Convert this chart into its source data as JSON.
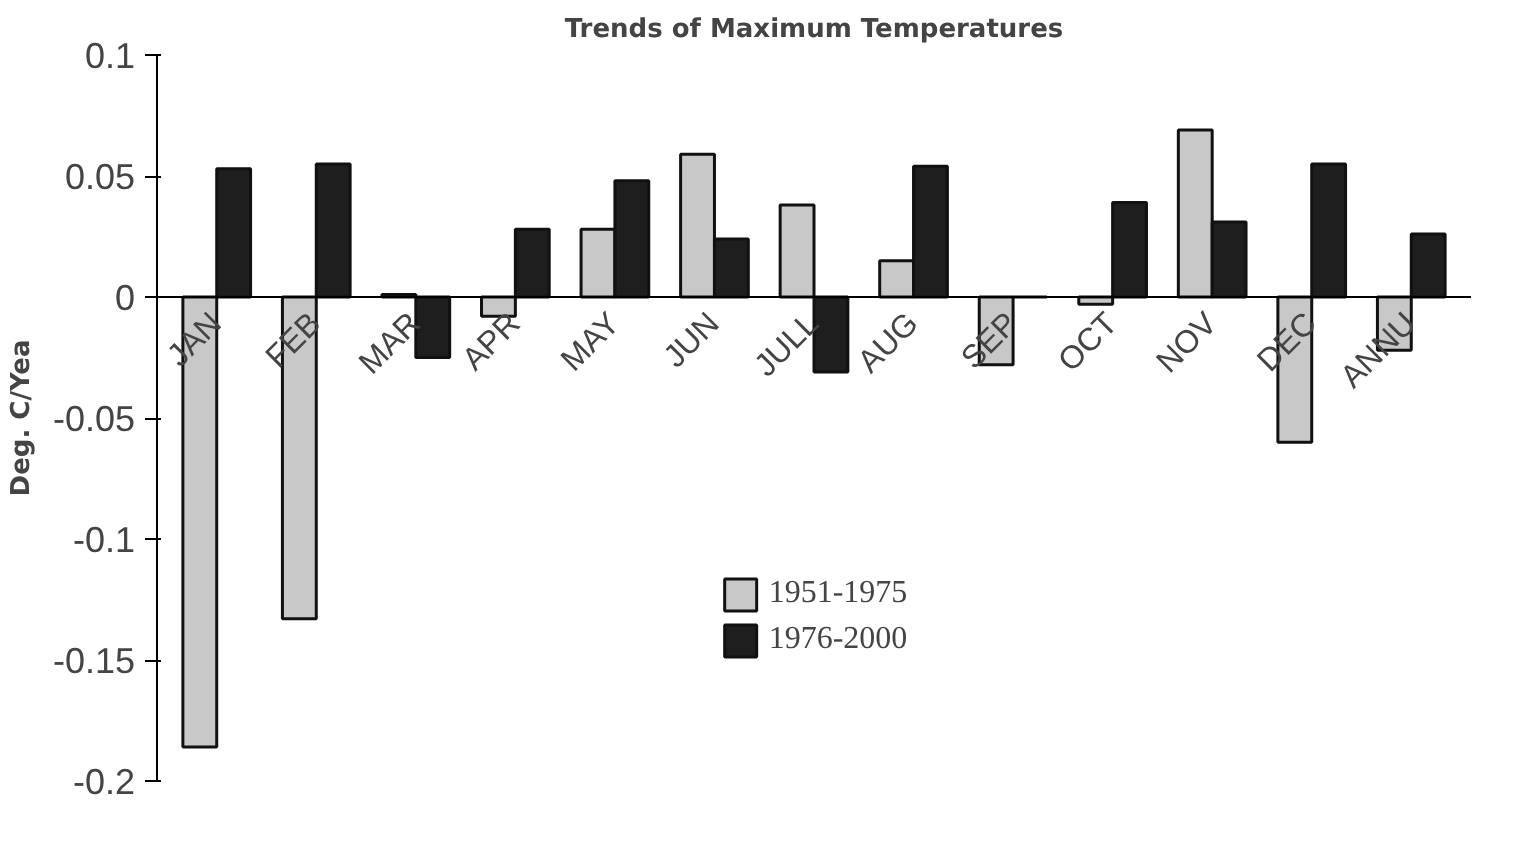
{
  "chart_data": {
    "type": "bar",
    "title": "Trends of Maximum Temperatures",
    "ylabel": "Deg. C/Yea",
    "categories": [
      "JAN",
      "FEB",
      "MAR",
      "APR",
      "MAY",
      "JUN",
      "JULL",
      "AUG",
      "SEP",
      "OCT",
      "NOV",
      "DEC",
      "ANNU"
    ],
    "series": [
      {
        "name": "1951-1975",
        "color": "#c8c8c8",
        "values": [
          -0.186,
          -0.133,
          0.001,
          -0.008,
          0.028,
          0.059,
          0.038,
          0.015,
          -0.028,
          -0.003,
          0.069,
          -0.06,
          -0.022
        ]
      },
      {
        "name": "1976-2000",
        "color": "#1e1e1e",
        "values": [
          0.053,
          0.055,
          -0.025,
          0.028,
          0.048,
          0.024,
          -0.031,
          0.054,
          0.0,
          0.039,
          0.031,
          0.055,
          0.026
        ]
      }
    ],
    "ylim": [
      -0.2,
      0.1
    ],
    "yticks": [
      -0.2,
      -0.15,
      -0.1,
      -0.05,
      0,
      0.05,
      0.1
    ],
    "grid": false,
    "legend": "bottom"
  }
}
